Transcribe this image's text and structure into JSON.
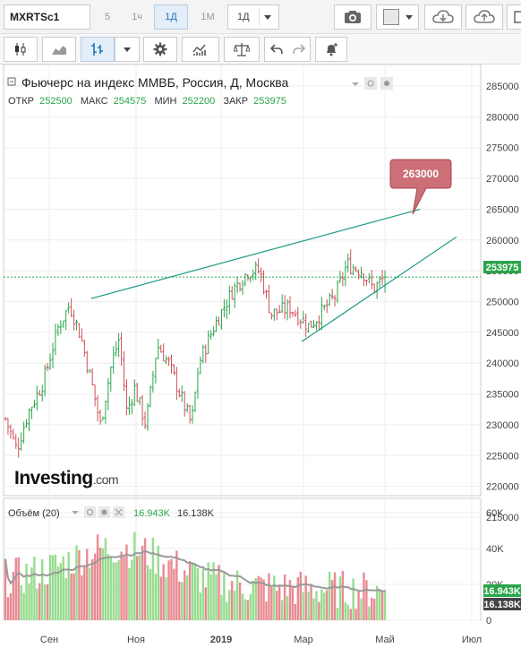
{
  "toolbar": {
    "symbol": "MXRTSc1",
    "intervals": [
      "5",
      "1ч",
      "1Д",
      "1М"
    ],
    "active_interval": "1Д",
    "interval_dropdown": "1Д"
  },
  "chart_header": {
    "title": "Фьючерс на индекс ММВБ, Россия, Д, Москва",
    "open_label": "ОТКР",
    "open_value": "252500",
    "high_label": "МАКС",
    "high_value": "254575",
    "low_label": "МИН",
    "low_value": "252200",
    "close_label": "ЗАКР",
    "close_value": "253975"
  },
  "price_callout": "263000",
  "last_price_tag": "253975",
  "logo": {
    "brand": "Investing",
    "suffix": ".com"
  },
  "volume_header": {
    "label": "Объём (20)",
    "value1": "16.943K",
    "value2": "16.138K"
  },
  "volume_tags": {
    "current": "16.943K",
    "average": "16.138K"
  },
  "price_axis": [
    "285000",
    "280000",
    "275000",
    "270000",
    "265000",
    "260000",
    "255000",
    "250000",
    "245000",
    "240000",
    "235000",
    "230000",
    "225000",
    "220000",
    "215000"
  ],
  "volume_axis": [
    "60K",
    "40K",
    "20K",
    "0"
  ],
  "x_axis": [
    "Сен",
    "Ноя",
    "2019",
    "Мар",
    "Май",
    "Июл"
  ],
  "colors": {
    "up": "#2aa54a",
    "down": "#d0505c",
    "trend": "#1f9a86",
    "vol_up": "#98dc8f",
    "vol_down": "#e88a92",
    "ma": "#999999",
    "callout": "#cc6f76"
  },
  "chart_data": {
    "type": "candlestick",
    "y_range": [
      215000,
      285000
    ],
    "volume_range": [
      0,
      60000
    ],
    "start_price": 231000,
    "waypoints": [
      [
        0,
        231000
      ],
      [
        0.03,
        226000
      ],
      [
        0.06,
        232000
      ],
      [
        0.1,
        237000
      ],
      [
        0.14,
        246000
      ],
      [
        0.17,
        249500
      ],
      [
        0.2,
        244000
      ],
      [
        0.23,
        236000
      ],
      [
        0.25,
        230000
      ],
      [
        0.28,
        240000
      ],
      [
        0.3,
        244000
      ],
      [
        0.32,
        232000
      ],
      [
        0.34,
        236000
      ],
      [
        0.37,
        230000
      ],
      [
        0.4,
        243000
      ],
      [
        0.43,
        240000
      ],
      [
        0.46,
        235000
      ],
      [
        0.49,
        230000
      ],
      [
        0.51,
        240000
      ],
      [
        0.55,
        246000
      ],
      [
        0.6,
        252000
      ],
      [
        0.64,
        255000
      ],
      [
        0.67,
        255000
      ],
      [
        0.7,
        248000
      ],
      [
        0.75,
        249000
      ],
      [
        0.8,
        246000
      ],
      [
        0.83,
        248000
      ],
      [
        0.87,
        251000
      ],
      [
        0.9,
        256000
      ],
      [
        0.94,
        255000
      ],
      [
        0.97,
        252000
      ],
      [
        1,
        253975
      ]
    ],
    "ohlc_last": {
      "open": 252500,
      "high": 254575,
      "low": 252200,
      "close": 253975
    },
    "trendlines": [
      {
        "from": [
          "2018-10-01",
          250500
        ],
        "to": [
          "2019-05-25",
          265000
        ]
      },
      {
        "from": [
          "2019-03-01",
          243500
        ],
        "to": [
          "2019-06-20",
          260500
        ]
      }
    ],
    "annotation": {
      "label": "263000",
      "value": 263000
    },
    "volume_current": 16943,
    "volume_average": 16138
  }
}
